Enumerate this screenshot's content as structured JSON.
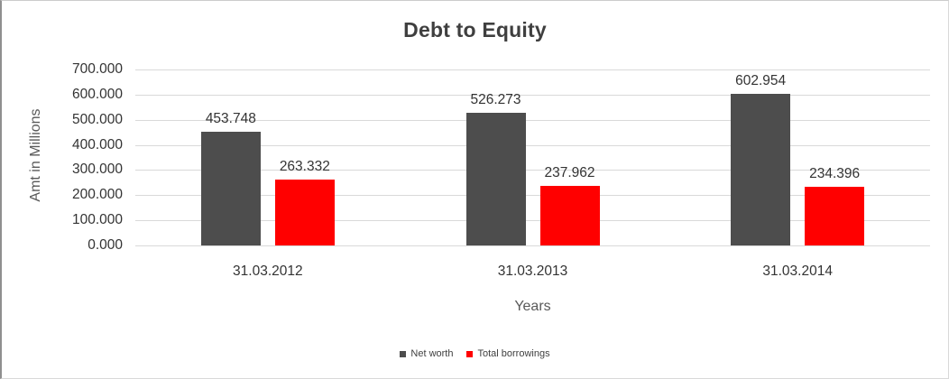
{
  "chart_data": {
    "type": "bar",
    "title": "Debt to Equity",
    "xlabel": "Years",
    "ylabel": "Amt in Millions",
    "ylim": [
      0,
      700
    ],
    "ytick_step": 100,
    "ytick_labels": [
      "0.000",
      "100.000",
      "200.000",
      "300.000",
      "400.000",
      "500.000",
      "600.000",
      "700.000"
    ],
    "categories": [
      "31.03.2012",
      "31.03.2013",
      "31.03.2014"
    ],
    "series": [
      {
        "name": "Net worth",
        "color": "#4D4D4D",
        "values": [
          453.748,
          526.273,
          602.954
        ],
        "labels": [
          "453.748",
          "526.273",
          "602.954"
        ]
      },
      {
        "name": "Total borrowings",
        "color": "#FF0000",
        "values": [
          263.332,
          237.962,
          234.396
        ],
        "labels": [
          "263.332",
          "237.962",
          "234.396"
        ]
      }
    ],
    "legend_position": "bottom",
    "grid": true,
    "colors": {
      "gridline": "#d9d9d9",
      "title_text": "#3f3f3f",
      "axis_title_text": "#595959",
      "tick_text": "#333333",
      "data_label_text": "#333333",
      "legend_text": "#404040"
    }
  }
}
